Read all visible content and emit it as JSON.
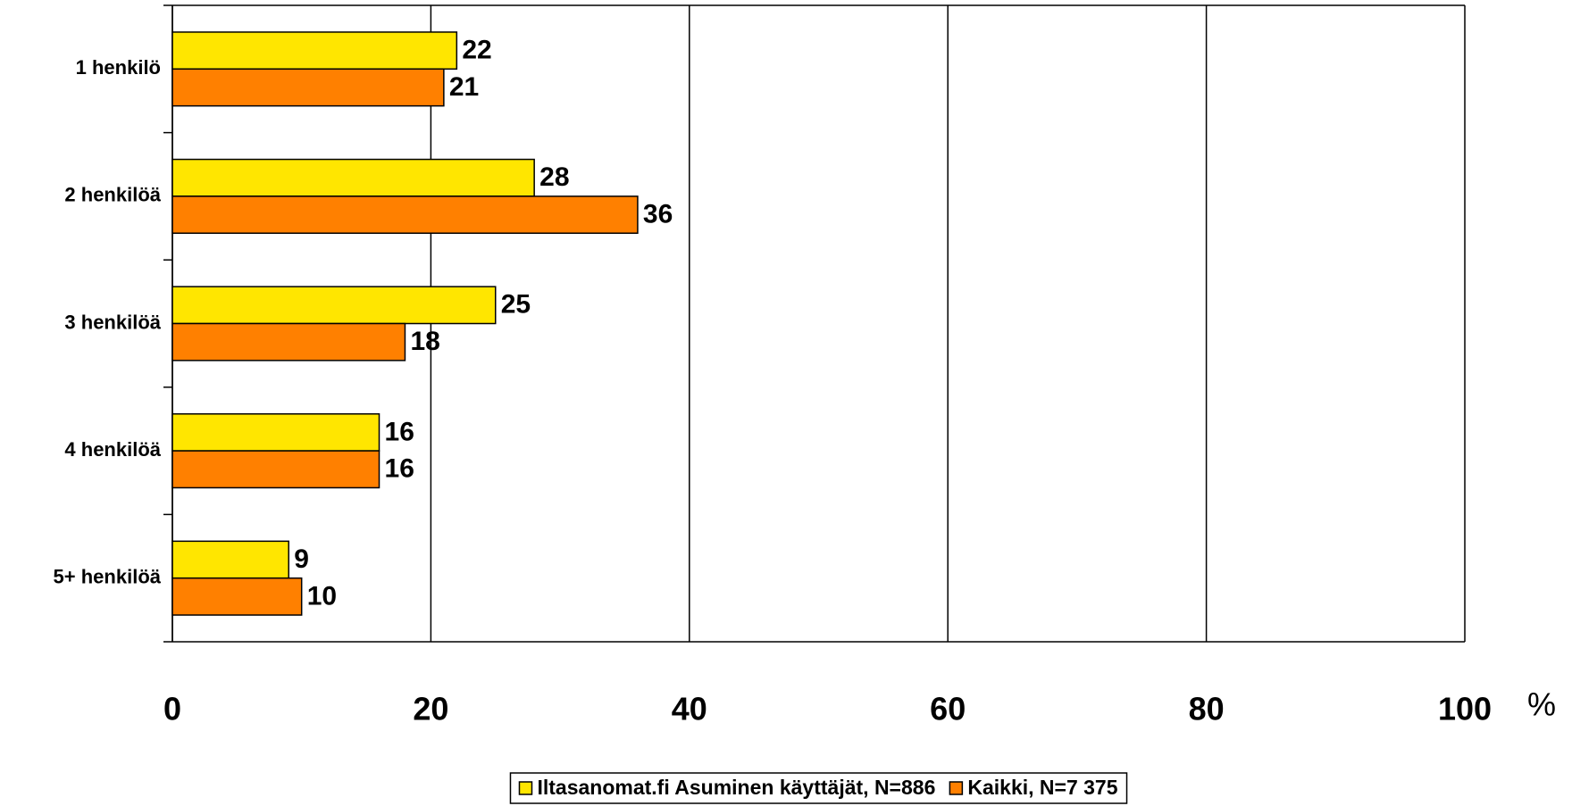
{
  "chart_data": {
    "type": "hbar",
    "categories": [
      "1 henkilö",
      "2 henkilöä",
      "3 henkilöä",
      "4 henkilöä",
      "5+ henkilöä"
    ],
    "series": [
      {
        "name": "Iltasanomat.fi Asuminen käyttäjät, N=886",
        "color": "#ffe600",
        "values": [
          22,
          28,
          25,
          16,
          9
        ]
      },
      {
        "name": "Kaikki, N=7 375",
        "color": "#ff8000",
        "values": [
          21,
          36,
          18,
          16,
          10
        ]
      }
    ],
    "xlabel": "%",
    "xlim": [
      0,
      100
    ],
    "xticks": [
      0,
      20,
      40,
      60,
      80,
      100
    ],
    "grid": true,
    "legend": "bottom"
  }
}
